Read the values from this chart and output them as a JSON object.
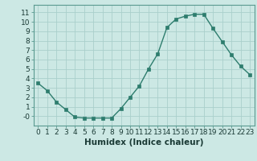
{
  "x": [
    0,
    1,
    2,
    3,
    4,
    5,
    6,
    7,
    8,
    9,
    10,
    11,
    12,
    13,
    14,
    15,
    16,
    17,
    18,
    19,
    20,
    21,
    22,
    23
  ],
  "y": [
    3.5,
    2.7,
    1.5,
    0.7,
    -0.1,
    -0.2,
    -0.2,
    -0.2,
    -0.2,
    0.8,
    2.0,
    3.2,
    5.0,
    6.6,
    9.4,
    10.3,
    10.6,
    10.8,
    10.8,
    9.3,
    7.9,
    6.5,
    5.3,
    4.4
  ],
  "line_color": "#2e7d6e",
  "marker": "s",
  "marker_size": 2.2,
  "bg_color": "#cce8e4",
  "grid_color": "#aacfcb",
  "xlabel": "Humidex (Indice chaleur)",
  "xlim": [
    -0.5,
    23.5
  ],
  "ylim": [
    -1.0,
    11.8
  ],
  "yticks": [
    0,
    1,
    2,
    3,
    4,
    5,
    6,
    7,
    8,
    9,
    10,
    11
  ],
  "ytick_labels": [
    "-0",
    "1",
    "2",
    "3",
    "4",
    "5",
    "6",
    "7",
    "8",
    "9",
    "10",
    "11"
  ],
  "xticks": [
    0,
    1,
    2,
    3,
    4,
    5,
    6,
    7,
    8,
    9,
    10,
    11,
    12,
    13,
    14,
    15,
    16,
    17,
    18,
    19,
    20,
    21,
    22,
    23
  ],
  "linewidth": 1.0,
  "xlabel_fontsize": 7.5,
  "tick_fontsize": 6.5,
  "spine_color": "#5a9a90"
}
